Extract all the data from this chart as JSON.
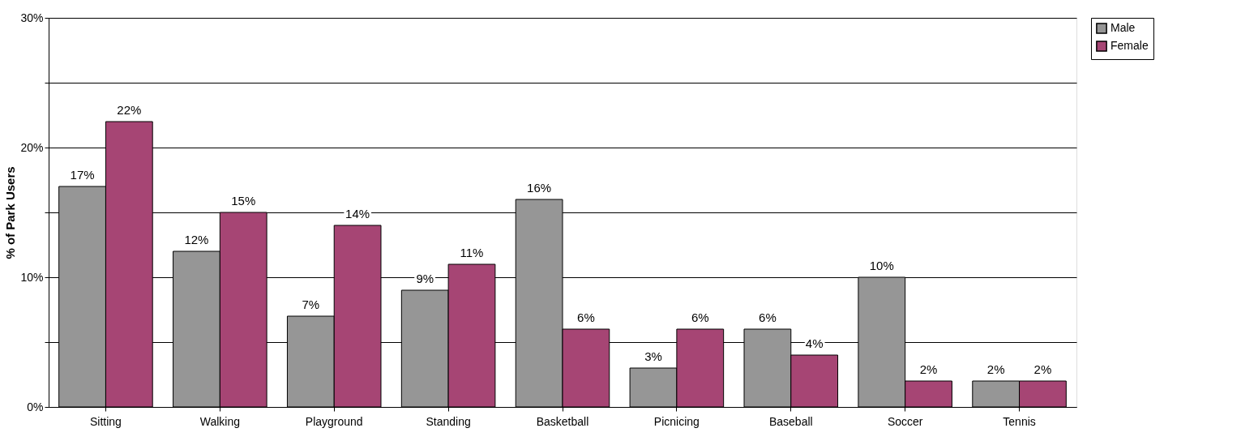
{
  "chart_data": {
    "type": "bar",
    "ylabel": "% of Park Users",
    "categories": [
      "Sitting",
      "Walking",
      "Playground",
      "Standing",
      "Basketball",
      "Picnicing",
      "Baseball",
      "Soccer",
      "Tennis"
    ],
    "series": [
      {
        "name": "Male",
        "color": "#969696",
        "values": [
          17,
          12,
          7,
          9,
          16,
          3,
          6,
          10,
          2
        ],
        "value_labels": [
          "17%",
          "12%",
          "7%",
          "9%",
          "16%",
          "3%",
          "6%",
          "10%",
          "2%"
        ]
      },
      {
        "name": "Female",
        "color": "#a64574",
        "values": [
          22,
          15,
          14,
          11,
          6,
          6,
          4,
          2,
          2
        ],
        "value_labels": [
          "22%",
          "15%",
          "14%",
          "11%",
          "6%",
          "6%",
          "4%",
          "2%",
          "2%"
        ]
      }
    ],
    "ylim": [
      0,
      30
    ],
    "yticks": [
      {
        "value": 0,
        "label": "0%"
      },
      {
        "value": 5,
        "label": null
      },
      {
        "value": 10,
        "label": "10%"
      },
      {
        "value": 15,
        "label": null
      },
      {
        "value": 20,
        "label": "20%"
      },
      {
        "value": 25,
        "label": null
      },
      {
        "value": 30,
        "label": "30%"
      }
    ],
    "grid": "y",
    "legend": "right"
  }
}
